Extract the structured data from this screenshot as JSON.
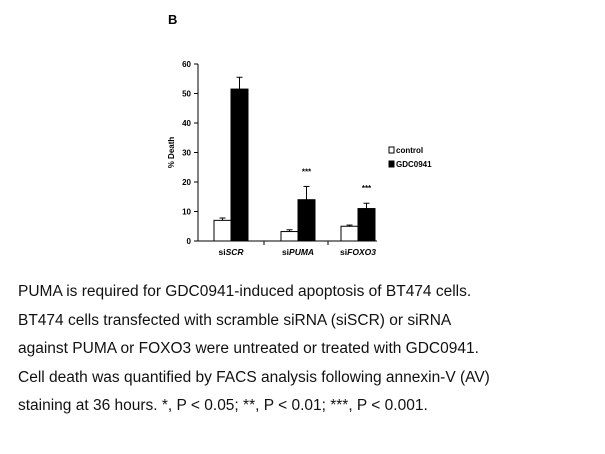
{
  "chart_data": {
    "type": "bar",
    "panel_label": "B",
    "ylabel": "% Death",
    "ylim": [
      0,
      60
    ],
    "yticks": [
      0,
      10,
      20,
      30,
      40,
      50,
      60
    ],
    "categories": [
      {
        "prefix": "si",
        "gene": "SCR"
      },
      {
        "prefix": "si",
        "gene": "PUMA"
      },
      {
        "prefix": "si",
        "gene": "FOXO3"
      }
    ],
    "series": [
      {
        "name": "control",
        "color": "#ffffff",
        "values": [
          7,
          3.2,
          5
        ],
        "errors": [
          0.8,
          0.6,
          0.4
        ]
      },
      {
        "name": "GDC0941",
        "color": "#000000",
        "values": [
          51.5,
          14,
          11
        ],
        "errors": [
          4,
          4.5,
          1.8
        ]
      }
    ],
    "annotations": [
      "",
      "***",
      "***"
    ]
  },
  "caption": {
    "lines": [
      "PUMA is required for GDC0941-induced apoptosis of BT474 cells.",
      "BT474 cells transfected with scramble siRNA (siSCR) or siRNA",
      "against PUMA or FOXO3 were untreated or treated with GDC0941.",
      "Cell death was quantified by FACS analysis following annexin-V (AV)",
      "staining at 36 hours. *, P < 0.05; **, P < 0.01; ***, P < 0.001."
    ]
  }
}
